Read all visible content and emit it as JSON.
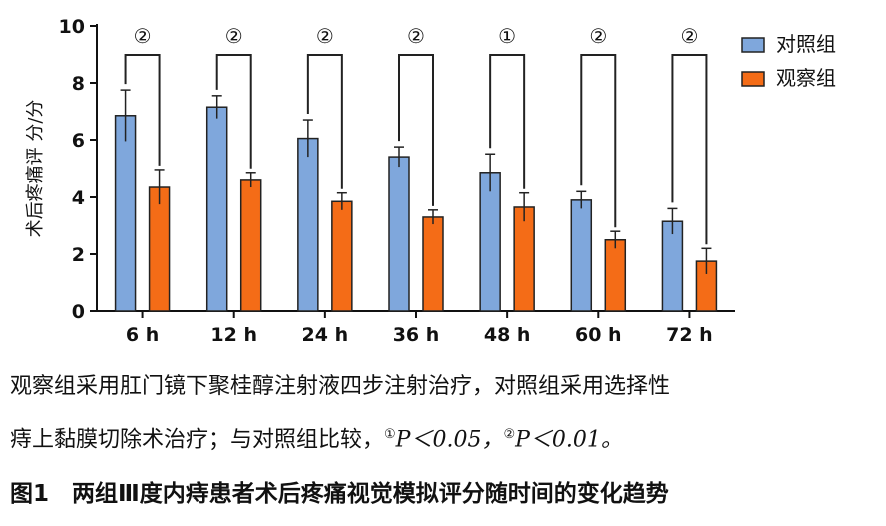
{
  "chart_data": {
    "type": "bar",
    "categories": [
      "6 h",
      "12 h",
      "24 h",
      "36 h",
      "48 h",
      "60 h",
      "72 h"
    ],
    "ylabel": "术后疼痛评 分/分",
    "ylim": [
      0,
      10
    ],
    "yticks": [
      "0",
      "2",
      "4",
      "6",
      "8",
      "10"
    ],
    "series": [
      {
        "name": "对照组",
        "color": "#7fa7dc",
        "values": [
          6.85,
          7.15,
          6.05,
          5.4,
          4.85,
          3.9,
          3.15
        ],
        "errors": [
          0.9,
          0.4,
          0.65,
          0.35,
          0.65,
          0.3,
          0.45
        ]
      },
      {
        "name": "观察组",
        "color": "#f46c17",
        "values": [
          4.35,
          4.6,
          3.85,
          3.3,
          3.65,
          2.5,
          1.75
        ],
        "errors": [
          0.6,
          0.25,
          0.3,
          0.25,
          0.5,
          0.3,
          0.45
        ]
      }
    ],
    "significance": [
      "②",
      "②",
      "②",
      "②",
      "①",
      "②",
      "②"
    ],
    "legend_position": "top-right",
    "grid": false
  },
  "caption": {
    "line1": "观察组采用肛门镜下聚桂醇注射液四步注射治疗，对照组采用选择性",
    "line2_text": "痔上黏膜切除术治疗；与对照组比较，",
    "mark1": "①",
    "p1": "P＜0.05，",
    "mark2": "②",
    "p2": "P＜0.01。"
  },
  "figure_title": "图1　两组Ⅲ度内痔患者术后疼痛视觉模拟评分随时间的变化趋势"
}
